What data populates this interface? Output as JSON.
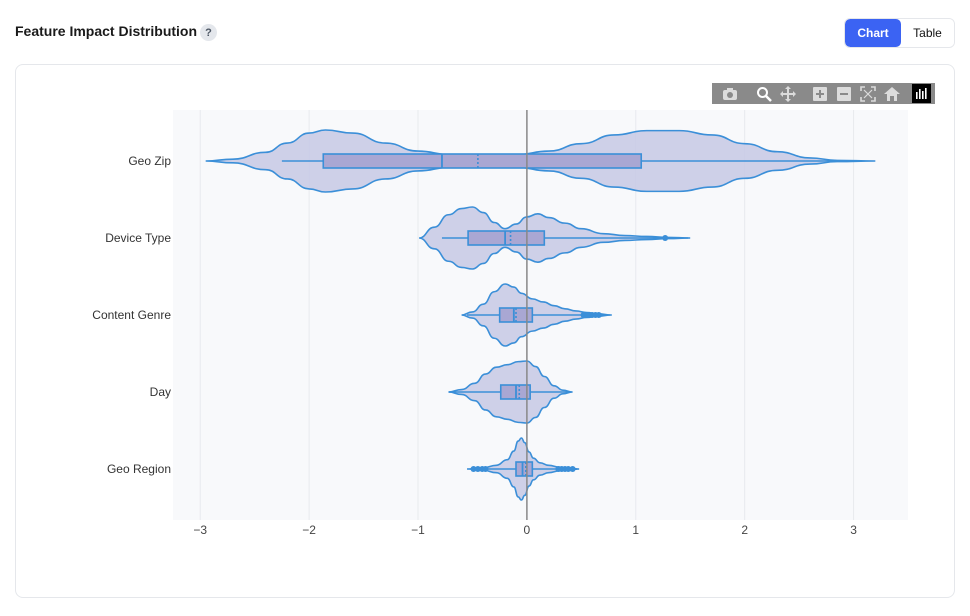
{
  "header": {
    "title": "Feature Impact Distribution",
    "help_label": "?",
    "view_toggle": {
      "chart_label": "Chart",
      "table_label": "Table",
      "selected": "Chart"
    }
  },
  "modebar": {
    "icons": [
      "camera-icon",
      "zoom-icon",
      "pan-icon",
      "zoom-in-icon",
      "zoom-out-icon",
      "autoscale-icon",
      "reset-axes-icon",
      "plotly-logo-icon"
    ]
  },
  "colors": {
    "violin_fill": "#c9cbe6",
    "violin_line": "#3b8fd8",
    "box_fill": "#a9a7d3",
    "plot_bg": "#f8f9fb",
    "zero_line": "#888888",
    "grid": "#e8eaee"
  },
  "chart_data": {
    "type": "violin",
    "title": "",
    "xlabel": "",
    "ylabel": "",
    "xlim": [
      -3.25,
      3.5
    ],
    "xticks": [
      -3,
      -2,
      -1,
      0,
      1,
      2,
      3
    ],
    "xtick_labels": [
      "−3",
      "−2",
      "−1",
      "0",
      "1",
      "2",
      "3"
    ],
    "grid": true,
    "zero_line": true,
    "categories": [
      "Geo Zip",
      "Device Type",
      "Content Genre",
      "Day",
      "Geo Region"
    ],
    "series": [
      {
        "category": "Geo Zip",
        "whisker_low": -2.25,
        "q1": -1.87,
        "median": -0.78,
        "mean": -0.45,
        "q3": 1.05,
        "whisker_high": 2.85,
        "outliers": [],
        "kde_x": [
          -2.95,
          -2.7,
          -2.4,
          -2.2,
          -2.0,
          -1.85,
          -1.6,
          -1.3,
          -1.0,
          -0.7,
          -0.4,
          -0.1,
          0.2,
          0.5,
          0.8,
          1.1,
          1.4,
          1.7,
          2.0,
          2.3,
          2.6,
          2.85,
          3.2
        ],
        "kde_y": [
          0.0,
          0.06,
          0.28,
          0.58,
          0.9,
          1.0,
          0.9,
          0.58,
          0.32,
          0.2,
          0.18,
          0.2,
          0.32,
          0.56,
          0.84,
          0.98,
          0.98,
          0.84,
          0.56,
          0.3,
          0.1,
          0.02,
          0.0
        ]
      },
      {
        "category": "Device Type",
        "whisker_low": -0.78,
        "q1": -0.54,
        "median": -0.2,
        "mean": -0.15,
        "q3": 0.16,
        "whisker_high": 1.48,
        "outliers": [
          1.27
        ],
        "kde_x": [
          -0.99,
          -0.85,
          -0.72,
          -0.6,
          -0.5,
          -0.4,
          -0.3,
          -0.2,
          -0.1,
          0.0,
          0.1,
          0.2,
          0.35,
          0.5,
          0.7,
          0.9,
          1.1,
          1.3,
          1.5
        ],
        "kde_y": [
          0.0,
          0.35,
          0.75,
          0.95,
          1.0,
          0.82,
          0.5,
          0.3,
          0.45,
          0.68,
          0.78,
          0.66,
          0.48,
          0.3,
          0.14,
          0.08,
          0.05,
          0.02,
          0.0
        ]
      },
      {
        "category": "Content Genre",
        "whisker_low": -0.55,
        "q1": -0.25,
        "median": -0.12,
        "mean": -0.1,
        "q3": 0.05,
        "whisker_high": 0.76,
        "outliers": [
          0.52,
          0.56,
          0.6,
          0.63,
          0.66
        ],
        "kde_x": [
          -0.6,
          -0.5,
          -0.4,
          -0.3,
          -0.2,
          -0.12,
          -0.05,
          0.05,
          0.15,
          0.25,
          0.35,
          0.45,
          0.55,
          0.65,
          0.78
        ],
        "kde_y": [
          0.0,
          0.1,
          0.35,
          0.75,
          1.0,
          0.9,
          0.7,
          0.52,
          0.42,
          0.3,
          0.2,
          0.13,
          0.08,
          0.04,
          0.0
        ]
      },
      {
        "category": "Day",
        "whisker_low": -0.72,
        "q1": -0.24,
        "median": -0.1,
        "mean": -0.07,
        "q3": 0.03,
        "whisker_high": 0.4,
        "outliers": [],
        "kde_x": [
          -0.72,
          -0.6,
          -0.48,
          -0.38,
          -0.28,
          -0.18,
          -0.08,
          0.0,
          0.08,
          0.16,
          0.25,
          0.33,
          0.42
        ],
        "kde_y": [
          0.0,
          0.08,
          0.28,
          0.58,
          0.8,
          0.88,
          0.98,
          1.0,
          0.82,
          0.5,
          0.2,
          0.06,
          0.0
        ]
      },
      {
        "category": "Geo Region",
        "whisker_low": -0.52,
        "q1": -0.1,
        "median": -0.04,
        "mean": -0.01,
        "q3": 0.05,
        "whisker_high": 0.46,
        "outliers": [
          -0.49,
          -0.45,
          -0.41,
          -0.38,
          0.29,
          0.32,
          0.35,
          0.38,
          0.42
        ],
        "kde_x": [
          -0.55,
          -0.4,
          -0.28,
          -0.18,
          -0.12,
          -0.08,
          -0.05,
          -0.02,
          0.02,
          0.06,
          0.12,
          0.2,
          0.3,
          0.4,
          0.48
        ],
        "kde_y": [
          0.0,
          0.04,
          0.12,
          0.3,
          0.58,
          0.9,
          1.0,
          0.85,
          0.55,
          0.35,
          0.2,
          0.12,
          0.06,
          0.02,
          0.0
        ]
      }
    ]
  }
}
